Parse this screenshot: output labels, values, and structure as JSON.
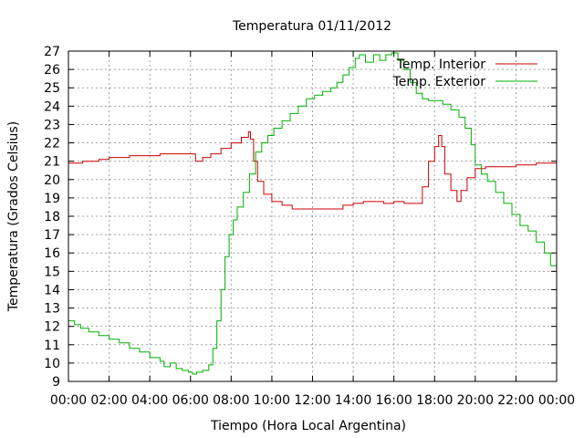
{
  "chart_data": {
    "type": "line",
    "title": "Temperatura 01/11/2012",
    "xlabel": "Tiempo (Hora Local Argentina)",
    "ylabel": "Temperatura (Grados Celsius)",
    "xlim": [
      0,
      24
    ],
    "ylim": [
      9,
      27
    ],
    "grid": true,
    "legend_position": "top-right",
    "x_ticks": [
      0,
      2,
      4,
      6,
      8,
      10,
      12,
      14,
      16,
      18,
      20,
      22,
      24
    ],
    "x_tick_labels": [
      "00:00",
      "02:00",
      "04:00",
      "06:00",
      "08:00",
      "10:00",
      "12:00",
      "14:00",
      "16:00",
      "18:00",
      "20:00",
      "22:00",
      "00:00"
    ],
    "y_ticks": [
      9,
      10,
      11,
      12,
      13,
      14,
      15,
      16,
      17,
      18,
      19,
      20,
      21,
      22,
      23,
      24,
      25,
      26,
      27
    ],
    "series": [
      {
        "name": "Temp. Interior",
        "color": "#cc0000",
        "points": [
          [
            0,
            20.9
          ],
          [
            0.5,
            20.9
          ],
          [
            0.7,
            21.0
          ],
          [
            1.0,
            21.0
          ],
          [
            1.5,
            21.1
          ],
          [
            2.0,
            21.2
          ],
          [
            2.5,
            21.2
          ],
          [
            3.0,
            21.3
          ],
          [
            3.5,
            21.3
          ],
          [
            4.0,
            21.3
          ],
          [
            4.5,
            21.4
          ],
          [
            5.0,
            21.4
          ],
          [
            5.5,
            21.4
          ],
          [
            5.9,
            21.4
          ],
          [
            6.1,
            21.4
          ],
          [
            6.25,
            21.0
          ],
          [
            6.4,
            21.0
          ],
          [
            6.6,
            21.2
          ],
          [
            7.0,
            21.4
          ],
          [
            7.5,
            21.7
          ],
          [
            8.0,
            22.0
          ],
          [
            8.5,
            22.3
          ],
          [
            8.85,
            22.6
          ],
          [
            8.95,
            22.2
          ],
          [
            9.1,
            21.0
          ],
          [
            9.3,
            19.9
          ],
          [
            9.6,
            19.2
          ],
          [
            10.0,
            18.8
          ],
          [
            10.5,
            18.6
          ],
          [
            11.0,
            18.4
          ],
          [
            12.0,
            18.4
          ],
          [
            13.0,
            18.4
          ],
          [
            13.5,
            18.6
          ],
          [
            14.0,
            18.7
          ],
          [
            14.5,
            18.8
          ],
          [
            15.0,
            18.8
          ],
          [
            15.5,
            18.7
          ],
          [
            16.0,
            18.8
          ],
          [
            16.5,
            18.7
          ],
          [
            17.2,
            18.7
          ],
          [
            17.4,
            19.6
          ],
          [
            17.7,
            21.0
          ],
          [
            18.0,
            21.8
          ],
          [
            18.2,
            22.4
          ],
          [
            18.35,
            21.8
          ],
          [
            18.5,
            20.3
          ],
          [
            18.8,
            19.4
          ],
          [
            19.1,
            18.8
          ],
          [
            19.3,
            19.4
          ],
          [
            19.6,
            20.1
          ],
          [
            20.0,
            20.6
          ],
          [
            20.5,
            20.7
          ],
          [
            21.0,
            20.7
          ],
          [
            21.5,
            20.7
          ],
          [
            22.0,
            20.8
          ],
          [
            22.5,
            20.8
          ],
          [
            23.0,
            20.9
          ],
          [
            24.0,
            20.9
          ]
        ]
      },
      {
        "name": "Temp. Exterior",
        "color": "#00b000",
        "points": [
          [
            0,
            12.3
          ],
          [
            0.3,
            12.1
          ],
          [
            0.6,
            11.9
          ],
          [
            1.0,
            11.7
          ],
          [
            1.5,
            11.5
          ],
          [
            2.0,
            11.3
          ],
          [
            2.5,
            11.1
          ],
          [
            3.0,
            10.8
          ],
          [
            3.5,
            10.6
          ],
          [
            4.0,
            10.3
          ],
          [
            4.5,
            10.1
          ],
          [
            4.7,
            9.8
          ],
          [
            5.0,
            10.0
          ],
          [
            5.3,
            9.7
          ],
          [
            5.6,
            9.6
          ],
          [
            5.9,
            9.5
          ],
          [
            6.1,
            9.4
          ],
          [
            6.3,
            9.5
          ],
          [
            6.6,
            9.6
          ],
          [
            6.9,
            9.9
          ],
          [
            7.1,
            10.8
          ],
          [
            7.3,
            12.3
          ],
          [
            7.5,
            14.0
          ],
          [
            7.7,
            15.8
          ],
          [
            7.9,
            17.0
          ],
          [
            8.1,
            17.8
          ],
          [
            8.3,
            18.5
          ],
          [
            8.6,
            19.3
          ],
          [
            8.9,
            20.3
          ],
          [
            9.2,
            21.5
          ],
          [
            9.5,
            22.0
          ],
          [
            9.8,
            22.4
          ],
          [
            10.1,
            22.8
          ],
          [
            10.5,
            23.2
          ],
          [
            10.9,
            23.6
          ],
          [
            11.3,
            24.0
          ],
          [
            11.7,
            24.4
          ],
          [
            12.1,
            24.6
          ],
          [
            12.5,
            24.8
          ],
          [
            12.9,
            25.0
          ],
          [
            13.2,
            25.3
          ],
          [
            13.5,
            25.7
          ],
          [
            13.8,
            26.1
          ],
          [
            14.1,
            26.6
          ],
          [
            14.3,
            26.8
          ],
          [
            14.6,
            26.4
          ],
          [
            15.0,
            26.8
          ],
          [
            15.3,
            26.5
          ],
          [
            15.6,
            26.8
          ],
          [
            15.9,
            26.9
          ],
          [
            16.2,
            26.5
          ],
          [
            16.5,
            26.0
          ],
          [
            16.8,
            25.3
          ],
          [
            17.1,
            24.7
          ],
          [
            17.4,
            24.4
          ],
          [
            17.7,
            24.3
          ],
          [
            18.0,
            24.3
          ],
          [
            18.4,
            24.1
          ],
          [
            18.8,
            23.8
          ],
          [
            19.2,
            23.4
          ],
          [
            19.5,
            22.8
          ],
          [
            19.8,
            21.9
          ],
          [
            20.0,
            20.8
          ],
          [
            20.3,
            20.3
          ],
          [
            20.6,
            19.9
          ],
          [
            21.0,
            19.3
          ],
          [
            21.4,
            18.7
          ],
          [
            21.8,
            18.1
          ],
          [
            22.2,
            17.5
          ],
          [
            22.6,
            17.2
          ],
          [
            23.0,
            16.6
          ],
          [
            23.4,
            16.0
          ],
          [
            23.7,
            15.3
          ],
          [
            24.0,
            14.7
          ]
        ]
      }
    ]
  }
}
